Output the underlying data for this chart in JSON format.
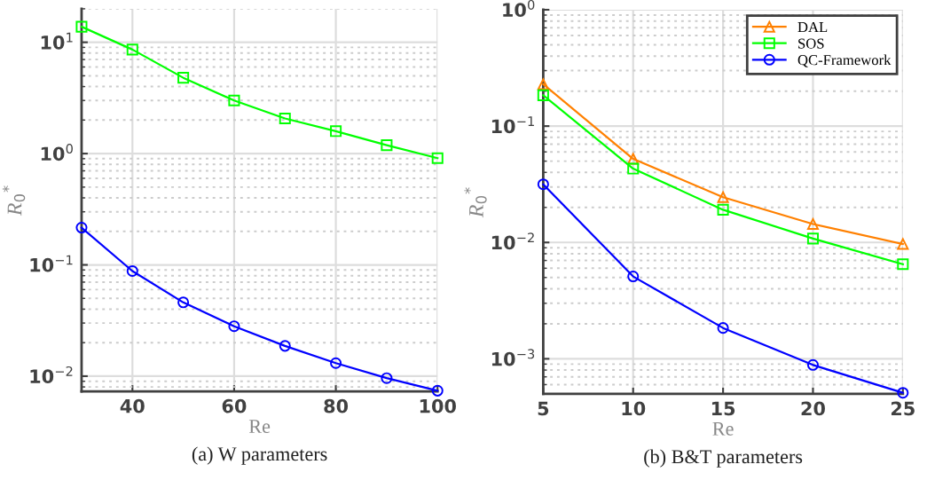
{
  "chart_data": [
    {
      "type": "line",
      "xlabel": "Re",
      "ylabel": "R$_{0}$$^{*}$",
      "annotations": [
        "(a) W parameters"
      ],
      "log": "y",
      "grid": true,
      "legend": false,
      "line_style": "solid",
      "xlim": [
        30,
        100
      ],
      "xticks": [
        40,
        60,
        80,
        100
      ],
      "ylim": [
        0.0073,
        20
      ],
      "yticks": [
        {
          "value": 0.01,
          "label": "10$^{−2}$"
        },
        {
          "value": 0.1,
          "label": "10$^{−1}$"
        },
        {
          "value": 1,
          "label": "10$^{0}$"
        },
        {
          "value": 10,
          "label": "10$^{1}$"
        }
      ],
      "x": [
        30,
        40,
        50,
        60,
        70,
        80,
        90,
        100
      ],
      "series": [
        {
          "color": "#00ff00",
          "marker": "square",
          "values": [
            13.8,
            8.6,
            4.8,
            3.0,
            2.07,
            1.59,
            1.19,
            0.91
          ]
        },
        {
          "color": "#0000ff",
          "marker": "circle",
          "values": [
            0.216,
            0.088,
            0.046,
            0.0281,
            0.0187,
            0.0131,
            0.0096,
            0.0074
          ]
        }
      ]
    },
    {
      "type": "line",
      "xlabel": "Re",
      "ylabel": "R$_{0}$$^{*}$",
      "annotations": [
        "(b) B&T parameters"
      ],
      "log": "y",
      "grid": true,
      "legend": "top right",
      "line_style": "solid",
      "xlim": [
        5,
        25
      ],
      "xticks": [
        5,
        10,
        15,
        20,
        25
      ],
      "ylim": [
        0.0005,
        1
      ],
      "yticks": [
        {
          "value": 0.001,
          "label": "10$^{−3}$"
        },
        {
          "value": 0.01,
          "label": "10$^{−2}$"
        },
        {
          "value": 0.1,
          "label": "10$^{−1}$"
        },
        {
          "value": 1,
          "label": "10$^{0}$"
        }
      ],
      "x": [
        5,
        10,
        15,
        20,
        25
      ],
      "series": [
        {
          "name": "DAL",
          "color": "#ff8000",
          "marker": "triangle",
          "values": [
            0.229,
            0.0523,
            0.0245,
            0.0144,
            0.0097
          ]
        },
        {
          "name": "SOS",
          "color": "#00ff00",
          "marker": "square",
          "values": [
            0.184,
            0.0431,
            0.0191,
            0.0108,
            0.0065
          ]
        },
        {
          "name": "QC-Framework",
          "color": "#0000ff",
          "marker": "circle",
          "values": [
            0.0316,
            0.0051,
            0.00184,
            0.000885,
            0.00051
          ]
        }
      ]
    }
  ]
}
